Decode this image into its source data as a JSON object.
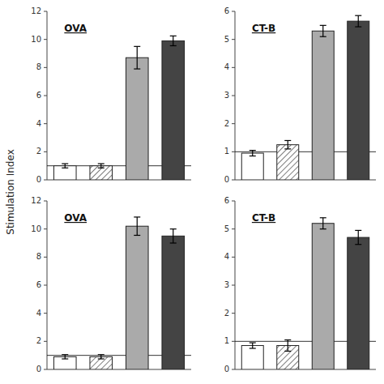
{
  "chart_data": [
    {
      "type": "bar",
      "title": "OVA",
      "ylabel": "Stimulation Index",
      "categories": [
        null,
        null,
        null,
        null
      ],
      "values": [
        1.0,
        1.0,
        8.7,
        9.9
      ],
      "errors": [
        0.15,
        0.15,
        0.8,
        0.35
      ],
      "colors": [
        "white",
        "white",
        "#aaaaaa",
        "#444444"
      ],
      "hline": 1.0,
      "ylim": [
        0,
        12
      ],
      "yticks": [
        0,
        2,
        4,
        6,
        8,
        10,
        12
      ],
      "grid": false,
      "tick_labels": "y"
    },
    {
      "type": "bar",
      "title": "CT-B",
      "categories": [
        null,
        null,
        null,
        null
      ],
      "values": [
        0.95,
        1.25,
        5.3,
        5.65
      ],
      "errors": [
        0.1,
        0.15,
        0.2,
        0.2
      ],
      "colors": [
        "white",
        "white",
        "#aaaaaa",
        "#444444"
      ],
      "hline": 1.0,
      "ylim": [
        0,
        6
      ],
      "yticks": [
        0,
        1,
        2,
        3,
        4,
        5,
        6
      ],
      "grid": false,
      "tick_labels": "y"
    },
    {
      "type": "bar",
      "title": "OVA",
      "categories": [
        null,
        null,
        null,
        null
      ],
      "values": [
        0.9,
        0.9,
        10.2,
        9.5
      ],
      "errors": [
        0.15,
        0.15,
        0.65,
        0.5
      ],
      "colors": [
        "white",
        "white",
        "#aaaaaa",
        "#444444"
      ],
      "hline": 1.0,
      "ylim": [
        0,
        12
      ],
      "yticks": [
        0,
        2,
        4,
        6,
        8,
        10,
        12
      ],
      "grid": false,
      "tick_labels": "y"
    },
    {
      "type": "bar",
      "title": "CT-B",
      "categories": [
        null,
        null,
        null,
        null
      ],
      "values": [
        0.85,
        0.85,
        5.2,
        4.7
      ],
      "errors": [
        0.1,
        0.2,
        0.2,
        0.25
      ],
      "colors": [
        "white",
        "white",
        "#aaaaaa",
        "#444444"
      ],
      "hline": 1.0,
      "ylim": [
        0,
        6
      ],
      "yticks": [
        0,
        1,
        2,
        3,
        4,
        5,
        6
      ],
      "grid": false,
      "tick_labels": "y"
    }
  ]
}
